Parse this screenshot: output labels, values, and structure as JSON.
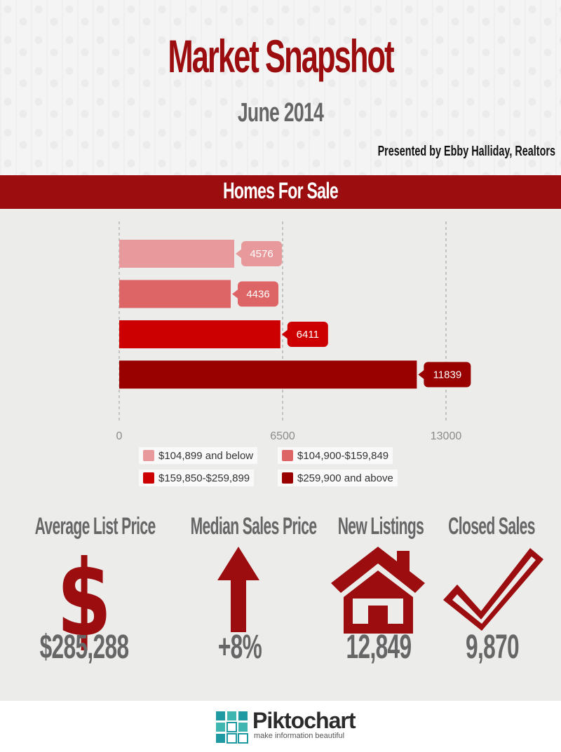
{
  "header": {
    "title": "Market Snapshot",
    "subtitle": "June 2014",
    "presenter": "Presented by Ebby Halliday, Realtors"
  },
  "section": {
    "title": "Homes For Sale"
  },
  "chart_data": {
    "type": "bar",
    "orientation": "horizontal",
    "title": "Homes For Sale",
    "xlabel": "",
    "ylabel": "",
    "xlim": [
      0,
      13000
    ],
    "x_ticks": [
      "0",
      "6500",
      "13000"
    ],
    "grid": true,
    "legend_position": "bottom",
    "series": [
      {
        "name": "$104,899 and below",
        "value": 4576,
        "label": "4576",
        "color": "#e8999b"
      },
      {
        "name": "$104,900-$159,849",
        "value": 4436,
        "label": "4436",
        "color": "#de6566"
      },
      {
        "name": "$159,850-$259,899",
        "value": 6411,
        "label": "6411",
        "color": "#cc0001"
      },
      {
        "name": "$259,900 and above",
        "value": 11839,
        "label": "11839",
        "color": "#990000"
      }
    ]
  },
  "stats": [
    {
      "title": "Average List Price",
      "value": "$285,288",
      "icon": "dollar-icon"
    },
    {
      "title": "Median Sales Price",
      "value": "+8%",
      "icon": "arrow-up-icon"
    },
    {
      "title": "New Listings",
      "value": "12,849",
      "icon": "house-icon"
    },
    {
      "title": "Closed Sales",
      "value": "9,870",
      "icon": "checkmark-icon"
    }
  ],
  "icons": {
    "dollar_glyph": "$"
  },
  "colors": {
    "accent": "#9b0d0f",
    "muted_text": "#666666"
  },
  "footer": {
    "brand": "Piktochart",
    "tagline": "make information beautiful"
  }
}
